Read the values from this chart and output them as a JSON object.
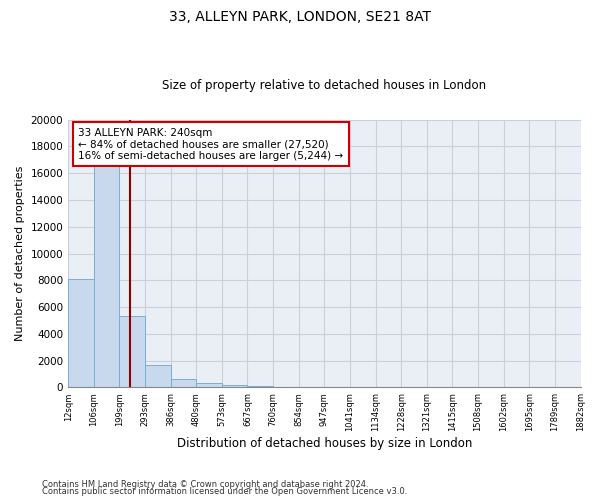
{
  "title1": "33, ALLEYN PARK, LONDON, SE21 8AT",
  "title2": "Size of property relative to detached houses in London",
  "xlabel": "Distribution of detached houses by size in London",
  "ylabel": "Number of detached properties",
  "bin_labels": [
    "12sqm",
    "106sqm",
    "199sqm",
    "293sqm",
    "386sqm",
    "480sqm",
    "573sqm",
    "667sqm",
    "760sqm",
    "854sqm",
    "947sqm",
    "1041sqm",
    "1134sqm",
    "1228sqm",
    "1321sqm",
    "1415sqm",
    "1508sqm",
    "1602sqm",
    "1695sqm",
    "1789sqm",
    "1882sqm"
  ],
  "bar_heights": [
    8100,
    16500,
    5300,
    1700,
    650,
    350,
    200,
    100,
    55,
    35,
    25,
    18,
    12,
    10,
    8,
    7,
    6,
    5,
    5,
    4
  ],
  "bar_color": "#c8d9ee",
  "bar_edge_color": "#7badd4",
  "vline_x": 2.43,
  "vline_color": "#8b0000",
  "annotation_text": "33 ALLEYN PARK: 240sqm\n← 84% of detached houses are smaller (27,520)\n16% of semi-detached houses are larger (5,244) →",
  "annotation_box_color": "#cc0000",
  "ylim": [
    0,
    20000
  ],
  "yticks": [
    0,
    2000,
    4000,
    6000,
    8000,
    10000,
    12000,
    14000,
    16000,
    18000,
    20000
  ],
  "bg_color": "#eaeff6",
  "grid_color": "#c8d0dc",
  "footnote1": "Contains HM Land Registry data © Crown copyright and database right 2024.",
  "footnote2": "Contains public sector information licensed under the Open Government Licence v3.0."
}
